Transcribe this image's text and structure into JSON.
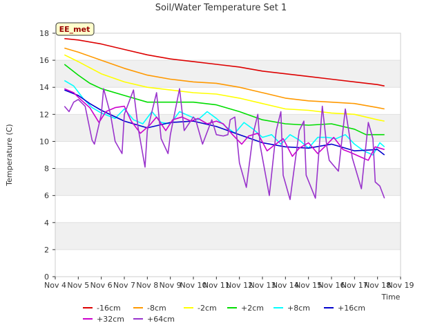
{
  "chart_data": {
    "type": "line",
    "title": "Soil/Water Temperature Set 1",
    "xlabel": "Time",
    "ylabel": "Temperature (C)",
    "badge": "EE_met",
    "xlim": [
      4,
      19
    ],
    "ylim": [
      0,
      18
    ],
    "x_ticks": [
      4,
      5,
      6,
      7,
      8,
      9,
      10,
      11,
      12,
      13,
      14,
      15,
      16,
      17,
      18,
      19
    ],
    "x_tick_labels": [
      "Nov 4",
      "Nov 5",
      "Nov 6",
      "Nov 7",
      "Nov 8",
      "Nov 9",
      "Nov 10",
      "Nov 11",
      "Nov 12",
      "Nov 13",
      "Nov 14",
      "Nov 15",
      "Nov 16",
      "Nov 17",
      "Nov 18",
      "Nov 19"
    ],
    "y_ticks": [
      0,
      2,
      4,
      6,
      8,
      10,
      12,
      14,
      16,
      18
    ],
    "grid": "alternating horizontal bands",
    "legend_position": "bottom",
    "series": [
      {
        "name": "-16cm",
        "color": "#dd0000",
        "x": [
          4.4,
          5,
          6,
          7,
          8,
          9,
          10,
          11,
          12,
          13,
          14,
          15,
          16,
          17,
          18,
          18.3
        ],
        "y": [
          17.6,
          17.5,
          17.2,
          16.8,
          16.4,
          16.1,
          15.9,
          15.7,
          15.5,
          15.2,
          15.0,
          14.8,
          14.6,
          14.4,
          14.2,
          14.1
        ]
      },
      {
        "name": "-8cm",
        "color": "#ff9900",
        "x": [
          4.4,
          5,
          6,
          7,
          8,
          9,
          10,
          11,
          12,
          13,
          14,
          15,
          16,
          17,
          18,
          18.3
        ],
        "y": [
          16.9,
          16.6,
          16.0,
          15.4,
          14.9,
          14.6,
          14.4,
          14.3,
          14.0,
          13.6,
          13.2,
          13.0,
          12.9,
          12.8,
          12.5,
          12.4
        ]
      },
      {
        "name": "-2cm",
        "color": "#ffff00",
        "x": [
          4.4,
          5,
          6,
          7,
          8,
          9,
          10,
          11,
          12,
          13,
          14,
          15,
          16,
          17,
          18,
          18.3
        ],
        "y": [
          16.4,
          15.9,
          15.0,
          14.4,
          14.0,
          13.8,
          13.6,
          13.5,
          13.2,
          12.8,
          12.4,
          12.3,
          12.1,
          12.0,
          11.6,
          11.5
        ]
      },
      {
        "name": "+2cm",
        "color": "#00dd00",
        "x": [
          4.4,
          5,
          5.5,
          6,
          7,
          8,
          9,
          10,
          11,
          12,
          13,
          14,
          15,
          16,
          17,
          17.5,
          18,
          18.3
        ],
        "y": [
          15.7,
          14.9,
          14.3,
          13.9,
          13.4,
          12.9,
          12.9,
          12.9,
          12.7,
          12.2,
          11.6,
          11.3,
          11.2,
          11.3,
          10.9,
          10.5,
          10.5,
          10.5
        ]
      },
      {
        "name": "+8cm",
        "color": "#00ffff",
        "x": [
          4.4,
          4.8,
          5.2,
          5.6,
          6,
          6.3,
          6.6,
          7,
          7.4,
          7.8,
          8.2,
          8.6,
          9,
          9.4,
          9.8,
          10.2,
          10.6,
          11,
          11.4,
          11.8,
          12.2,
          12.6,
          13,
          13.4,
          13.8,
          14.2,
          14.6,
          15,
          15.4,
          15.8,
          16.2,
          16.6,
          17,
          17.4,
          17.8,
          18.1,
          18.3
        ],
        "y": [
          14.5,
          14.1,
          13.2,
          12.5,
          12.1,
          11.9,
          11.7,
          12.4,
          11.6,
          11.3,
          12.2,
          11.4,
          11.3,
          12.2,
          11.9,
          11.6,
          12.2,
          11.7,
          11.1,
          10.6,
          11.4,
          10.9,
          10.3,
          10.5,
          9.8,
          10.5,
          10.1,
          9.5,
          10.3,
          10.3,
          10.2,
          10.5,
          9.8,
          9.3,
          9.0,
          9.9,
          9.6
        ]
      },
      {
        "name": "+16cm",
        "color": "#0000cc",
        "x": [
          4.4,
          5,
          5.5,
          6,
          7,
          8,
          9,
          10,
          11,
          12,
          13,
          14,
          15,
          16,
          17,
          18,
          18.3
        ],
        "y": [
          13.8,
          13.4,
          12.8,
          12.3,
          11.5,
          11.0,
          11.4,
          11.5,
          11.1,
          10.5,
          9.9,
          9.6,
          9.5,
          9.8,
          9.3,
          9.4,
          9.0
        ]
      },
      {
        "name": "+32cm",
        "color": "#cc00cc",
        "x": [
          4.4,
          4.8,
          5.1,
          5.5,
          5.9,
          6.2,
          6.6,
          7,
          7.3,
          7.7,
          8.1,
          8.4,
          8.8,
          9.1,
          9.5,
          9.9,
          10.2,
          10.6,
          11,
          11.3,
          11.7,
          12.1,
          12.4,
          12.8,
          13.2,
          13.5,
          13.9,
          14.3,
          14.6,
          15,
          15.4,
          15.7,
          16.1,
          16.5,
          16.8,
          17.2,
          17.6,
          17.9,
          18.3
        ],
        "y": [
          13.9,
          13.6,
          13.1,
          12.5,
          11.4,
          12.2,
          12.5,
          12.6,
          11.5,
          10.6,
          11.2,
          11.8,
          10.8,
          11.6,
          11.8,
          11.5,
          11.7,
          11.3,
          11.5,
          11.3,
          10.5,
          9.8,
          10.4,
          10.6,
          9.3,
          9.7,
          10.2,
          8.9,
          9.5,
          9.9,
          9.1,
          9.6,
          10.3,
          9.4,
          9.2,
          8.9,
          8.6,
          9.6,
          9.4
        ]
      },
      {
        "name": "+64cm",
        "color": "#9933cc",
        "x": [
          4.4,
          4.6,
          4.8,
          5.0,
          5.3,
          5.6,
          5.7,
          6.0,
          6.1,
          6.4,
          6.6,
          6.9,
          7.0,
          7.4,
          7.6,
          7.9,
          8.0,
          8.4,
          8.6,
          8.9,
          9.0,
          9.4,
          9.6,
          10.0,
          10.1,
          10.4,
          10.8,
          11.0,
          11.3,
          11.5,
          11.6,
          11.8,
          12.0,
          12.3,
          12.6,
          12.8,
          12.9,
          13.3,
          13.6,
          13.8,
          13.9,
          14.2,
          14.6,
          14.8,
          14.9,
          15.3,
          15.6,
          15.8,
          15.9,
          16.3,
          16.6,
          16.8,
          16.9,
          17.3,
          17.6,
          17.8,
          17.9,
          18.1,
          18.3
        ],
        "y": [
          12.6,
          12.2,
          12.9,
          13.1,
          12.6,
          10.1,
          9.8,
          12.0,
          13.9,
          12.0,
          10.0,
          9.1,
          12.0,
          13.8,
          11.0,
          8.1,
          10.8,
          13.6,
          10.2,
          9.1,
          10.5,
          13.9,
          10.8,
          11.8,
          11.6,
          9.8,
          11.6,
          10.5,
          10.4,
          10.5,
          11.6,
          11.8,
          8.4,
          6.6,
          10.6,
          12.0,
          9.7,
          6.0,
          10.8,
          12.2,
          7.5,
          5.7,
          10.8,
          11.5,
          7.5,
          5.8,
          12.6,
          9.6,
          8.6,
          7.8,
          12.4,
          10.2,
          8.8,
          6.5,
          11.4,
          10.2,
          7.0,
          6.7,
          5.8
        ]
      }
    ]
  }
}
